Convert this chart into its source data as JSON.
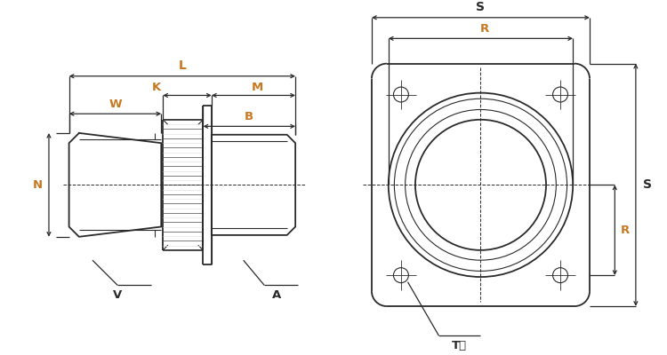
{
  "bg_color": "#ffffff",
  "line_color": "#2a2a2a",
  "orange_color": "#c87820",
  "labels": {
    "L": "L",
    "K": "K",
    "M": "M",
    "W": "W",
    "B": "B",
    "N": "N",
    "V": "V",
    "A": "A",
    "S_top": "S",
    "R_top": "R",
    "R_right": "R",
    "S_right": "S",
    "T": "T穴"
  }
}
